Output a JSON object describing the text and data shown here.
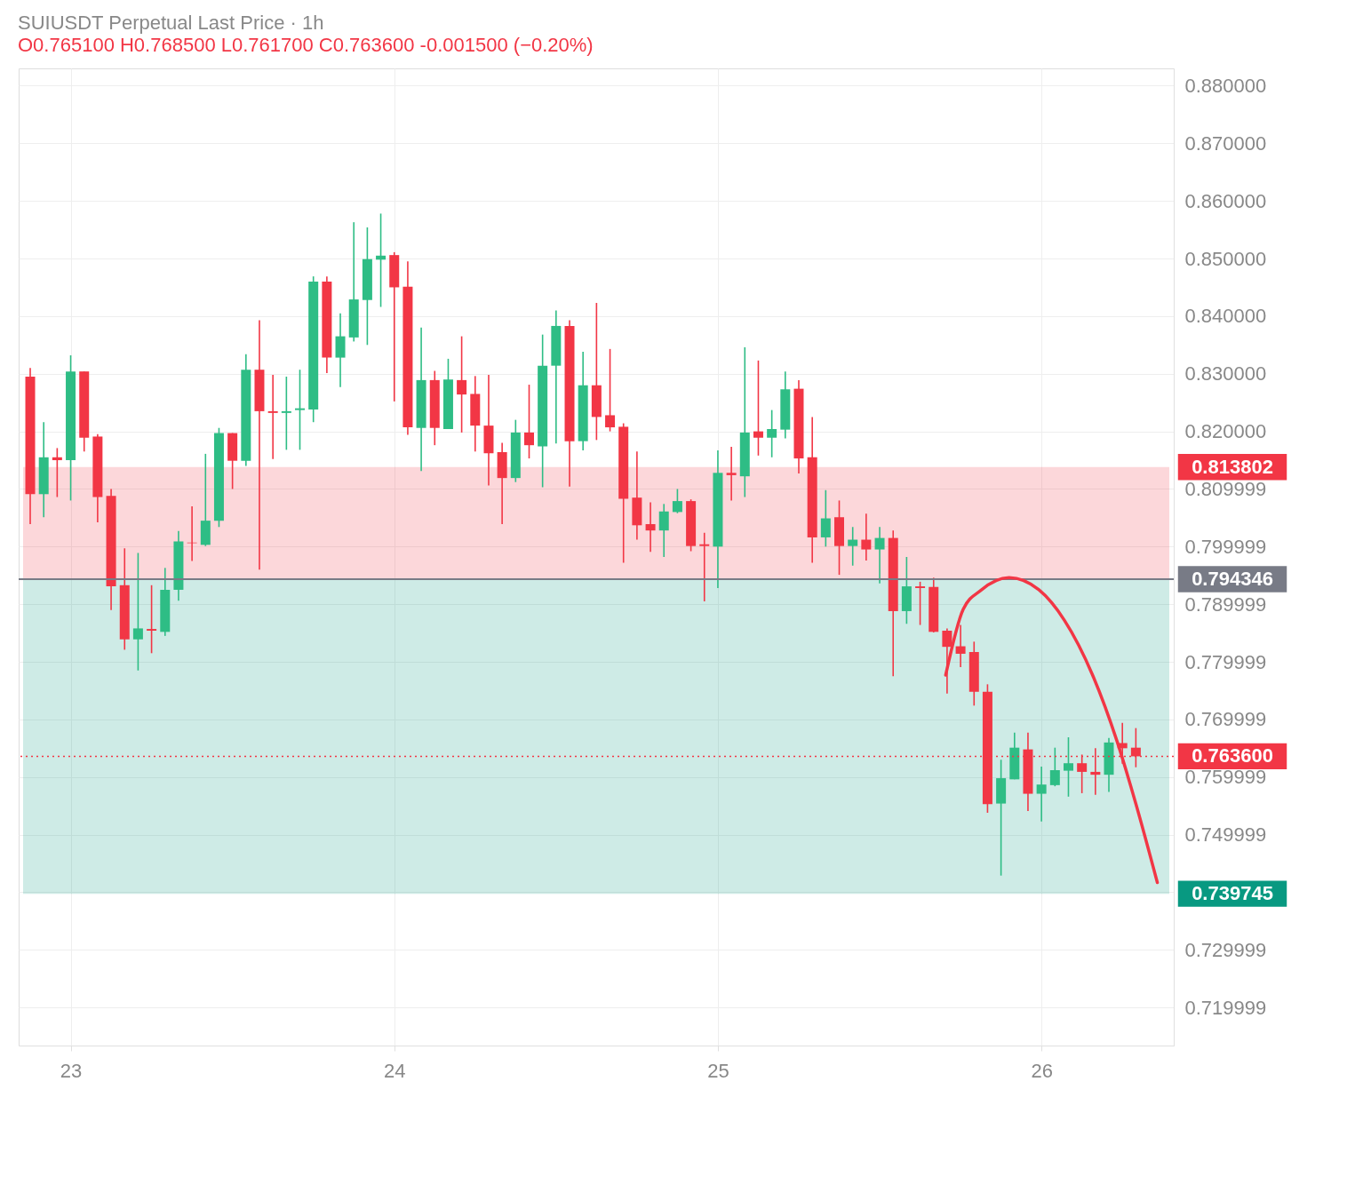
{
  "chart_data": {
    "type": "candlestick",
    "title": "SUIUSDT Perpetual Last Price · 1h",
    "subtitle": "O0.765100 H0.768500 L0.761700 C0.763600 -0.001500 (−0.20%)",
    "x": [
      22.875,
      22.9167,
      22.9583,
      23,
      23.0417,
      23.0833,
      23.125,
      23.1667,
      23.2083,
      23.25,
      23.2917,
      23.3333,
      23.375,
      23.4167,
      23.4583,
      23.5,
      23.5417,
      23.5833,
      23.625,
      23.6667,
      23.7083,
      23.75,
      23.7917,
      23.8333,
      23.875,
      23.9167,
      23.9583,
      24,
      24.0417,
      24.0833,
      24.125,
      24.1667,
      24.2083,
      24.25,
      24.2917,
      24.3333,
      24.375,
      24.4167,
      24.4583,
      24.5,
      24.5417,
      24.5833,
      24.625,
      24.6667,
      24.7083,
      24.75,
      24.7917,
      24.8333,
      24.875,
      24.9167,
      24.9583,
      25,
      25.0417,
      25.0833,
      25.125,
      25.1667,
      25.2083,
      25.25,
      25.2917,
      25.3333,
      25.375,
      25.4167,
      25.4583,
      25.5,
      25.5417,
      25.5833,
      25.625,
      25.6667,
      25.7083,
      25.75,
      25.7917,
      25.8333,
      25.875,
      25.9167,
      25.9583,
      26,
      26.0417,
      26.0833,
      26.125,
      26.1667,
      26.2083,
      26.25,
      26.2917
    ],
    "ohlc": [
      [
        0.8295,
        0.831,
        0.8039,
        0.8091
      ],
      [
        0.8091,
        0.8216,
        0.8051,
        0.8155
      ],
      [
        0.8155,
        0.8171,
        0.8086,
        0.815
      ],
      [
        0.815,
        0.8332,
        0.808,
        0.8304
      ],
      [
        0.8304,
        0.8304,
        0.8165,
        0.8189
      ],
      [
        0.8191,
        0.8195,
        0.8042,
        0.8086
      ],
      [
        0.8088,
        0.81,
        0.789,
        0.7931
      ],
      [
        0.7933,
        0.7997,
        0.7821,
        0.7839
      ],
      [
        0.7839,
        0.7989,
        0.7785,
        0.7858
      ],
      [
        0.7857,
        0.7933,
        0.7815,
        0.7854
      ],
      [
        0.7852,
        0.7963,
        0.7845,
        0.7925
      ],
      [
        0.7925,
        0.8027,
        0.7906,
        0.8009
      ],
      [
        0.8007,
        0.807,
        0.7975,
        0.8006
      ],
      [
        0.8003,
        0.8161,
        0.8001,
        0.8045
      ],
      [
        0.8045,
        0.8206,
        0.8034,
        0.8197
      ],
      [
        0.8197,
        0.8197,
        0.81,
        0.8149
      ],
      [
        0.8149,
        0.8334,
        0.814,
        0.8307
      ],
      [
        0.8307,
        0.8393,
        0.796,
        0.8235
      ],
      [
        0.8235,
        0.8298,
        0.8152,
        0.8232
      ],
      [
        0.8232,
        0.8295,
        0.8168,
        0.8235
      ],
      [
        0.8237,
        0.8307,
        0.8168,
        0.824
      ],
      [
        0.8238,
        0.8469,
        0.8216,
        0.846
      ],
      [
        0.846,
        0.8469,
        0.8301,
        0.8328
      ],
      [
        0.8328,
        0.8405,
        0.8277,
        0.8365
      ],
      [
        0.8363,
        0.8563,
        0.8356,
        0.8429
      ],
      [
        0.8428,
        0.8554,
        0.835,
        0.8499
      ],
      [
        0.8498,
        0.8578,
        0.8416,
        0.8505
      ],
      [
        0.8506,
        0.8511,
        0.8252,
        0.845
      ],
      [
        0.8451,
        0.8495,
        0.8194,
        0.8207
      ],
      [
        0.8206,
        0.838,
        0.8131,
        0.8289
      ],
      [
        0.8289,
        0.8305,
        0.8176,
        0.8206
      ],
      [
        0.8204,
        0.8326,
        0.8204,
        0.829
      ],
      [
        0.8289,
        0.8365,
        0.8198,
        0.8264
      ],
      [
        0.8265,
        0.8296,
        0.8165,
        0.821
      ],
      [
        0.821,
        0.8298,
        0.8106,
        0.8162
      ],
      [
        0.8164,
        0.818,
        0.8039,
        0.8119
      ],
      [
        0.8119,
        0.822,
        0.8112,
        0.8198
      ],
      [
        0.8198,
        0.8281,
        0.8153,
        0.8176
      ],
      [
        0.8174,
        0.8368,
        0.8103,
        0.8314
      ],
      [
        0.8314,
        0.841,
        0.8179,
        0.8383
      ],
      [
        0.8383,
        0.8393,
        0.8104,
        0.8183
      ],
      [
        0.8183,
        0.8338,
        0.8167,
        0.828
      ],
      [
        0.828,
        0.8423,
        0.8185,
        0.8225
      ],
      [
        0.8228,
        0.8343,
        0.82,
        0.8207
      ],
      [
        0.8208,
        0.8214,
        0.7972,
        0.8083
      ],
      [
        0.8085,
        0.8165,
        0.8012,
        0.8037
      ],
      [
        0.8039,
        0.8077,
        0.7991,
        0.8028
      ],
      [
        0.8028,
        0.8074,
        0.7982,
        0.8061
      ],
      [
        0.806,
        0.81,
        0.8058,
        0.8079
      ],
      [
        0.8079,
        0.8082,
        0.7992,
        0.8001
      ],
      [
        0.8004,
        0.8024,
        0.7905,
        0.8001
      ],
      [
        0.8,
        0.8167,
        0.7928,
        0.8128
      ],
      [
        0.8128,
        0.8173,
        0.808,
        0.8124
      ],
      [
        0.8122,
        0.8346,
        0.8086,
        0.8198
      ],
      [
        0.82,
        0.8323,
        0.8158,
        0.8189
      ],
      [
        0.8189,
        0.8237,
        0.8155,
        0.8204
      ],
      [
        0.8203,
        0.8304,
        0.8188,
        0.8273
      ],
      [
        0.8274,
        0.8289,
        0.8127,
        0.8153
      ],
      [
        0.8155,
        0.8225,
        0.7972,
        0.8016
      ],
      [
        0.8016,
        0.8098,
        0.8,
        0.8049
      ],
      [
        0.8051,
        0.808,
        0.7951,
        0.8001
      ],
      [
        0.8001,
        0.8034,
        0.7967,
        0.8012
      ],
      [
        0.8012,
        0.8057,
        0.7976,
        0.7995
      ],
      [
        0.7995,
        0.8034,
        0.7936,
        0.8015
      ],
      [
        0.8015,
        0.8028,
        0.7775,
        0.7888
      ],
      [
        0.7888,
        0.7982,
        0.7866,
        0.7931
      ],
      [
        0.7931,
        0.7939,
        0.7864,
        0.7928
      ],
      [
        0.793,
        0.7946,
        0.7851,
        0.7852
      ],
      [
        0.7854,
        0.7858,
        0.7745,
        0.7826
      ],
      [
        0.7827,
        0.7864,
        0.7791,
        0.7814
      ],
      [
        0.7817,
        0.7835,
        0.7724,
        0.7748
      ],
      [
        0.7748,
        0.7761,
        0.7538,
        0.7553
      ],
      [
        0.7554,
        0.763,
        0.7429,
        0.7598
      ],
      [
        0.7596,
        0.7677,
        0.7596,
        0.7651
      ],
      [
        0.7648,
        0.7677,
        0.7541,
        0.7571
      ],
      [
        0.7571,
        0.7618,
        0.7523,
        0.7587
      ],
      [
        0.7586,
        0.7651,
        0.7584,
        0.7612
      ],
      [
        0.7611,
        0.7669,
        0.7566,
        0.7624
      ],
      [
        0.7624,
        0.7639,
        0.7572,
        0.7609
      ],
      [
        0.7609,
        0.765,
        0.7569,
        0.7604
      ],
      [
        0.7604,
        0.7668,
        0.7574,
        0.766
      ],
      [
        0.7659,
        0.7694,
        0.7623,
        0.765
      ],
      [
        0.7651,
        0.7685,
        0.7617,
        0.7636
      ]
    ],
    "colors": [
      "#f23645",
      "#2ebd85",
      "#f23645",
      "#2ebd85",
      "#f23645",
      "#f23645",
      "#f23645",
      "#f23645",
      "#2ebd85",
      "#f23645",
      "#2ebd85",
      "#2ebd85",
      "#f23645",
      "#2ebd85",
      "#2ebd85",
      "#f23645",
      "#2ebd85",
      "#f23645",
      "#f23645",
      "#2ebd85",
      "#2ebd85",
      "#2ebd85",
      "#f23645",
      "#2ebd85",
      "#2ebd85",
      "#2ebd85",
      "#2ebd85",
      "#f23645",
      "#f23645",
      "#2ebd85",
      "#f23645",
      "#2ebd85",
      "#f23645",
      "#f23645",
      "#f23645",
      "#f23645",
      "#2ebd85",
      "#f23645",
      "#2ebd85",
      "#2ebd85",
      "#f23645",
      "#2ebd85",
      "#f23645",
      "#f23645",
      "#f23645",
      "#f23645",
      "#f23645",
      "#2ebd85",
      "#2ebd85",
      "#f23645",
      "#f23645",
      "#2ebd85",
      "#f23645",
      "#2ebd85",
      "#f23645",
      "#2ebd85",
      "#2ebd85",
      "#f23645",
      "#f23645",
      "#2ebd85",
      "#f23645",
      "#2ebd85",
      "#f23645",
      "#2ebd85",
      "#f23645",
      "#2ebd85",
      "#f23645",
      "#f23645",
      "#f23645",
      "#f23645",
      "#f23645",
      "#f23645",
      "#2ebd85",
      "#2ebd85",
      "#f23645",
      "#2ebd85",
      "#2ebd85",
      "#2ebd85",
      "#f23645",
      "#f23645",
      "#2ebd85",
      "#f23645",
      "#f23645"
    ],
    "series": [
      {
        "type": "line",
        "color": "#f23645",
        "x": [
          25.704,
          25.758,
          25.8125,
          25.9,
          25.992,
          26.071,
          26.158,
          26.233,
          26.292,
          26.358
        ],
        "values": [
          0.7777,
          0.7891,
          0.7924,
          0.7946,
          0.7925,
          0.7872,
          0.7777,
          0.7663,
          0.7553,
          0.7417
        ]
      }
    ],
    "xlim": [
      22.853,
      26.395
    ],
    "xticks": [
      23,
      24,
      25,
      26
    ],
    "ylim": [
      0.7134,
      0.883
    ],
    "yticks": [
      {
        "value": 0.88,
        "label": "0.880000"
      },
      {
        "value": 0.87,
        "label": "0.870000"
      },
      {
        "value": 0.86,
        "label": "0.860000"
      },
      {
        "value": 0.85,
        "label": "0.850000"
      },
      {
        "value": 0.84,
        "label": "0.840000"
      },
      {
        "value": 0.83,
        "label": "0.830000"
      },
      {
        "value": 0.82,
        "label": "0.820000"
      },
      0.809999,
      0.799999,
      0.789999,
      0.779999,
      0.769999,
      0.759999,
      0.749999,
      {
        "value": 0.739999,
        "label": null
      },
      0.729999,
      0.719999
    ],
    "bands": [
      {
        "axis": "y",
        "from": 0.794346,
        "to": 0.813802,
        "label": "0.813802",
        "color": "#f23645"
      },
      {
        "axis": "y",
        "from": 0.739745,
        "to": 0.794346,
        "label": "0.739745",
        "color": "#089981"
      }
    ],
    "ref_lines": [
      {
        "axis": "y",
        "value": 0.794346,
        "label": "0.794346",
        "color": "#787b86",
        "line_style": "solid"
      },
      {
        "axis": "y",
        "value": 0.7636,
        "label": "0.763600",
        "color": "#f23645",
        "line_style": "dotted"
      }
    ],
    "grid": true
  }
}
